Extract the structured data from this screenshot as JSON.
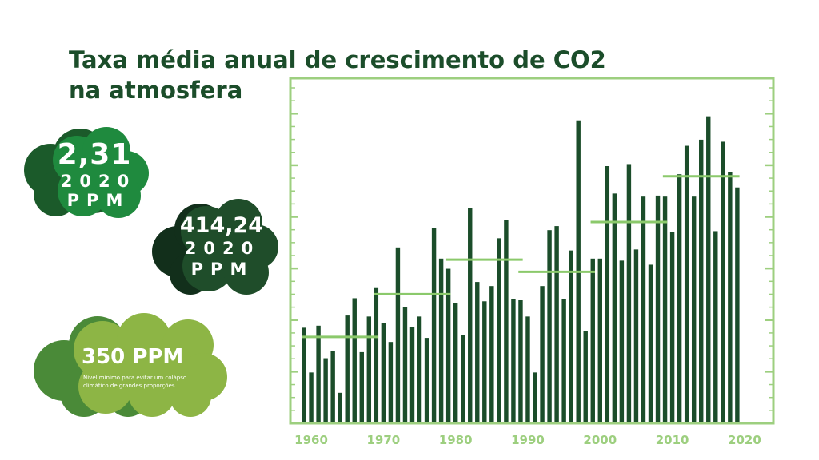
{
  "title": "Taxa média anual de crescimento de CO2 na atmosfera",
  "badges": {
    "growth": {
      "value": "2,31",
      "year": "2020",
      "unit": "PPM"
    },
    "concentration": {
      "value": "414,24",
      "year": "2020",
      "unit": "PPM"
    },
    "threshold": {
      "value": "350 PPM",
      "note": "Nível mínimo para evitar um colápso climático de grandes proporções"
    }
  },
  "colors": {
    "bar": "#1b4d2a",
    "frame": "#9dcf7f",
    "avg": "#8bc96b",
    "title": "#1b4d2a"
  },
  "chart_data": {
    "type": "bar",
    "x": [
      1959,
      1960,
      1961,
      1962,
      1963,
      1964,
      1965,
      1966,
      1967,
      1968,
      1969,
      1970,
      1971,
      1972,
      1973,
      1974,
      1975,
      1976,
      1977,
      1978,
      1979,
      1980,
      1981,
      1982,
      1983,
      1984,
      1985,
      1986,
      1987,
      1988,
      1989,
      1990,
      1991,
      1992,
      1993,
      1994,
      1995,
      1996,
      1997,
      1998,
      1999,
      2000,
      2001,
      2002,
      2003,
      2004,
      2005,
      2006,
      2007,
      2008,
      2009,
      2010,
      2011,
      2012,
      2013,
      2014,
      2015,
      2016,
      2017,
      2018,
      2019
    ],
    "values": [
      0.94,
      0.5,
      0.96,
      0.64,
      0.71,
      0.3,
      1.06,
      1.23,
      0.7,
      1.05,
      1.33,
      0.99,
      0.8,
      1.73,
      1.14,
      0.95,
      1.05,
      0.84,
      1.92,
      1.62,
      1.52,
      1.18,
      0.87,
      2.12,
      1.39,
      1.2,
      1.35,
      1.82,
      2.0,
      1.22,
      1.21,
      1.05,
      0.5,
      1.35,
      1.9,
      1.94,
      1.22,
      1.7,
      2.98,
      0.91,
      1.62,
      1.62,
      2.53,
      2.26,
      1.6,
      2.55,
      1.71,
      2.23,
      1.56,
      2.24,
      2.23,
      1.88,
      2.45,
      2.73,
      2.23,
      2.79,
      3.02,
      1.89,
      2.77,
      2.47,
      2.32
    ],
    "x_ticks": [
      1960,
      1970,
      1980,
      1990,
      2000,
      2010,
      2020
    ],
    "x_range": [
      1958,
      2023
    ],
    "ylim": [
      0,
      3.3
    ],
    "decadal_averages": [
      {
        "start": 1959,
        "end": 1969,
        "value": 0.85
      },
      {
        "start": 1969,
        "end": 1979,
        "value": 1.27
      },
      {
        "start": 1979,
        "end": 1989,
        "value": 1.61
      },
      {
        "start": 1989,
        "end": 1999,
        "value": 1.49
      },
      {
        "start": 1999,
        "end": 2009,
        "value": 1.98
      },
      {
        "start": 2009,
        "end": 2019,
        "value": 2.43
      }
    ],
    "grid": false
  }
}
